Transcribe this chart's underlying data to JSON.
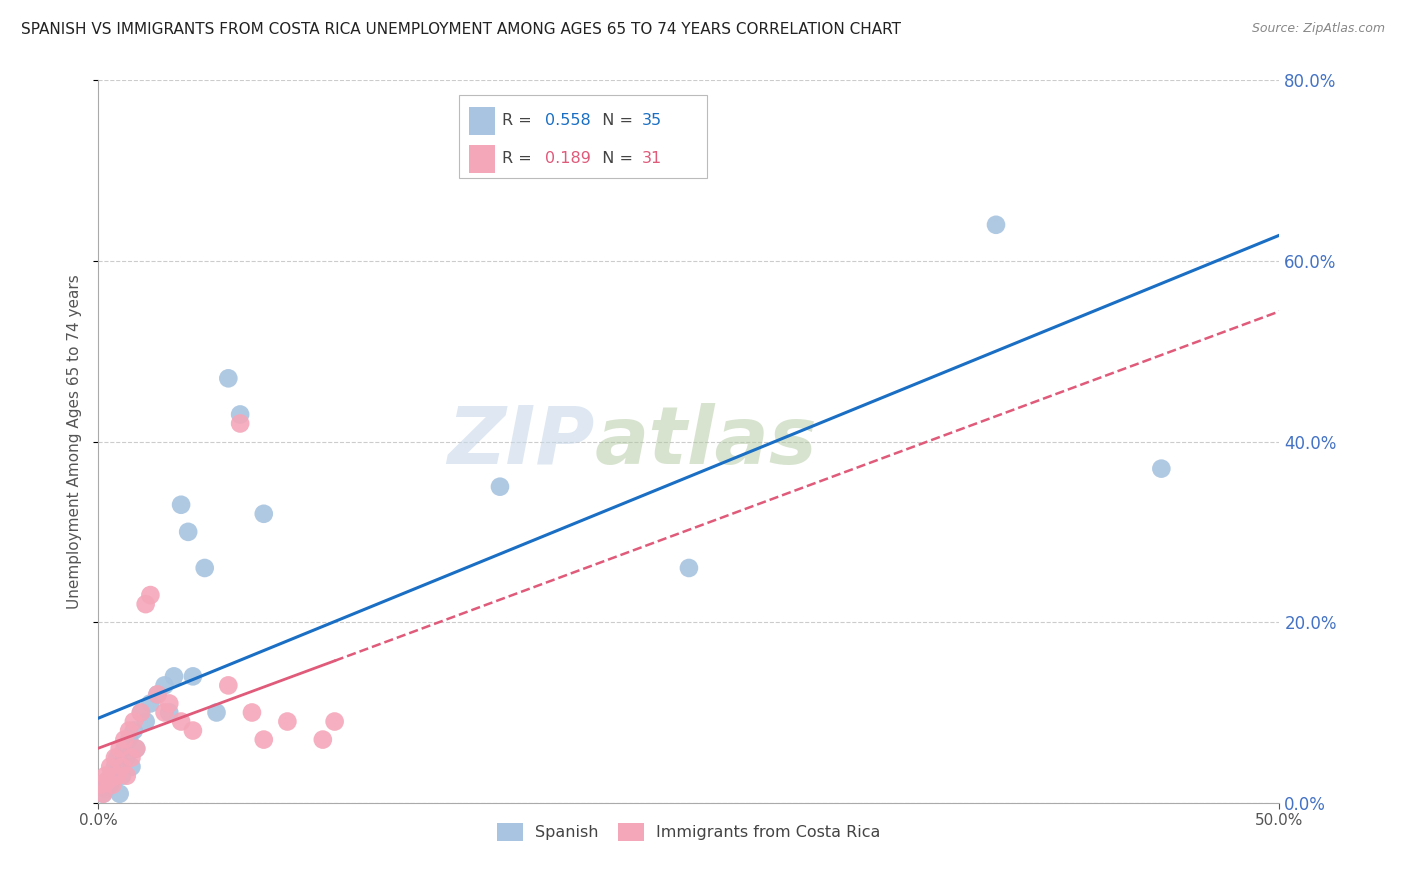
{
  "title": "SPANISH VS IMMIGRANTS FROM COSTA RICA UNEMPLOYMENT AMONG AGES 65 TO 74 YEARS CORRELATION CHART",
  "source": "Source: ZipAtlas.com",
  "ylabel": "Unemployment Among Ages 65 to 74 years",
  "xlim": [
    0.0,
    0.5
  ],
  "ylim": [
    0.0,
    0.8
  ],
  "xticks": [
    0.0,
    0.5
  ],
  "yticks": [
    0.0,
    0.2,
    0.4,
    0.6,
    0.8
  ],
  "spanish_x": [
    0.001,
    0.002,
    0.003,
    0.004,
    0.005,
    0.006,
    0.007,
    0.008,
    0.009,
    0.01,
    0.011,
    0.012,
    0.013,
    0.014,
    0.015,
    0.016,
    0.018,
    0.02,
    0.022,
    0.025,
    0.028,
    0.03,
    0.032,
    0.035,
    0.038,
    0.04,
    0.045,
    0.05,
    0.055,
    0.06,
    0.07,
    0.17,
    0.25,
    0.38,
    0.45
  ],
  "spanish_y": [
    0.02,
    0.01,
    0.015,
    0.025,
    0.02,
    0.03,
    0.04,
    0.05,
    0.01,
    0.03,
    0.06,
    0.05,
    0.07,
    0.04,
    0.08,
    0.06,
    0.1,
    0.09,
    0.11,
    0.12,
    0.13,
    0.1,
    0.14,
    0.33,
    0.3,
    0.14,
    0.26,
    0.1,
    0.47,
    0.43,
    0.32,
    0.35,
    0.26,
    0.64,
    0.37
  ],
  "cr_x": [
    0.001,
    0.002,
    0.003,
    0.004,
    0.005,
    0.006,
    0.007,
    0.008,
    0.009,
    0.01,
    0.011,
    0.012,
    0.013,
    0.014,
    0.015,
    0.016,
    0.018,
    0.02,
    0.022,
    0.025,
    0.028,
    0.03,
    0.035,
    0.04,
    0.055,
    0.06,
    0.065,
    0.07,
    0.08,
    0.095,
    0.1
  ],
  "cr_y": [
    0.02,
    0.01,
    0.03,
    0.025,
    0.04,
    0.02,
    0.05,
    0.03,
    0.06,
    0.04,
    0.07,
    0.03,
    0.08,
    0.05,
    0.09,
    0.06,
    0.1,
    0.22,
    0.23,
    0.12,
    0.1,
    0.11,
    0.09,
    0.08,
    0.13,
    0.42,
    0.1,
    0.07,
    0.09,
    0.07,
    0.09
  ],
  "spanish_color": "#a8c4e0",
  "cr_color": "#f4a7b9",
  "spanish_line_color": "#1a6fc4",
  "cr_line_color": "#e05a7a",
  "R_spanish": 0.558,
  "N_spanish": 35,
  "R_cr": 0.189,
  "N_cr": 31,
  "watermark_zip": "ZIP",
  "watermark_atlas": "atlas",
  "title_fontsize": 11,
  "axis_label_fontsize": 10,
  "tick_fontsize": 11,
  "right_tick_color": "#4472c4",
  "background_color": "#ffffff",
  "grid_color": "#cccccc"
}
